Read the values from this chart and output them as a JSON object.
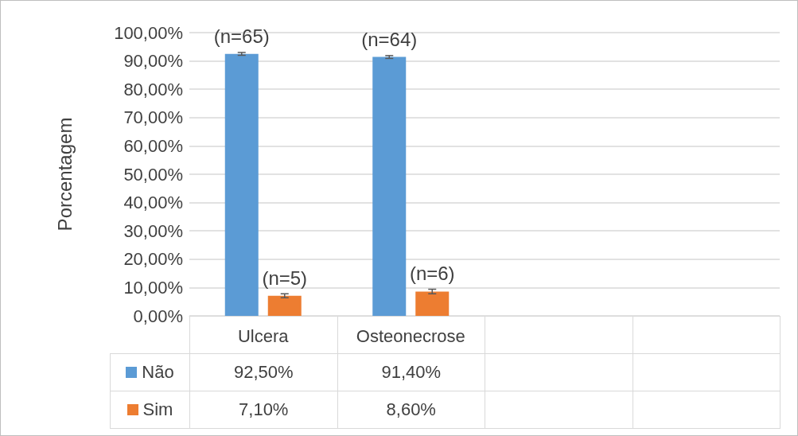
{
  "chart_data": {
    "type": "bar",
    "ylabel": "Porcentagem",
    "categories": [
      "Ulcera",
      "Osteonecrose",
      null,
      null
    ],
    "series": [
      {
        "name": "Não",
        "color": "#5b9bd5",
        "values": [
          92.5,
          91.4,
          null,
          null
        ],
        "errors": [
          0.5,
          0.5,
          null,
          null
        ],
        "value_labels": [
          "92,50%",
          "91,40%",
          null,
          null
        ]
      },
      {
        "name": "Sim",
        "color": "#ed7d31",
        "values": [
          7.1,
          8.6,
          null,
          null
        ],
        "errors": [
          0.7,
          0.8,
          null,
          null
        ],
        "value_labels": [
          "7,10%",
          "8,60%",
          null,
          null
        ]
      }
    ],
    "ylim": [
      0,
      100
    ],
    "yticks": [
      {
        "value": 0,
        "label": "0,00%"
      },
      {
        "value": 10,
        "label": "10,00%"
      },
      {
        "value": 20,
        "label": "20,00%"
      },
      {
        "value": 30,
        "label": "30,00%"
      },
      {
        "value": 40,
        "label": "40,00%"
      },
      {
        "value": 50,
        "label": "50,00%"
      },
      {
        "value": 60,
        "label": "60,00%"
      },
      {
        "value": 70,
        "label": "70,00%"
      },
      {
        "value": 80,
        "label": "80,00%"
      },
      {
        "value": 90,
        "label": "90,00%"
      },
      {
        "value": 100,
        "label": "100,00%"
      }
    ],
    "grid": "y",
    "legend": "bottom left",
    "annotations": [
      "(n=65)",
      "(n=5)",
      "(n=64)",
      "(n=6)"
    ]
  }
}
